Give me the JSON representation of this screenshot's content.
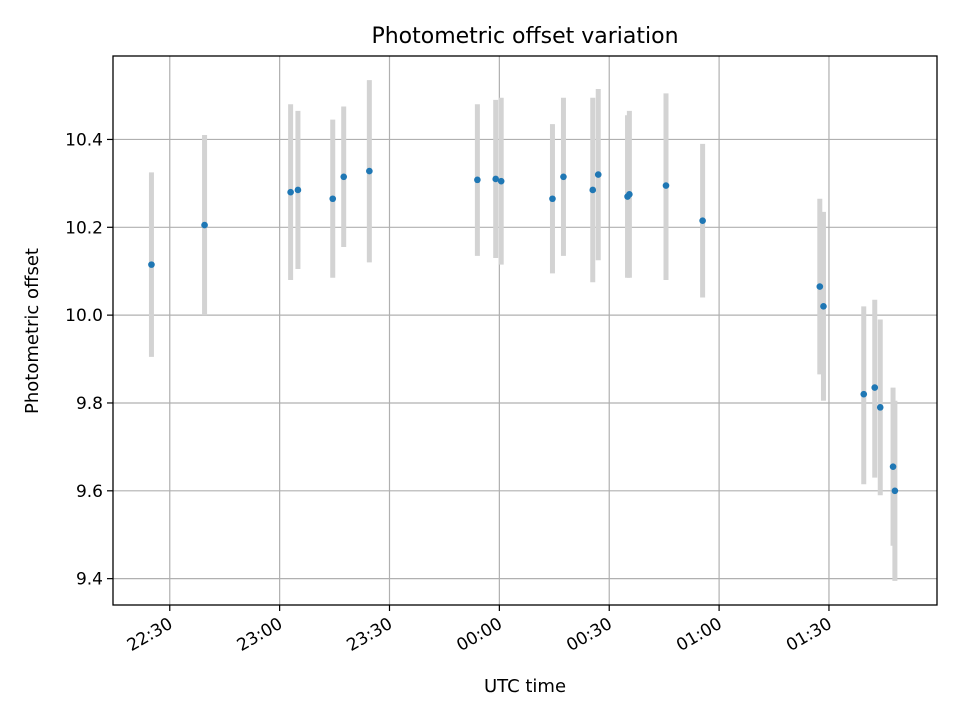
{
  "chart_data": {
    "type": "scatter",
    "title": "Photometric offset variation",
    "xlabel": "UTC time",
    "ylabel": "Photometric offset",
    "grid": true,
    "x_tick_labels": [
      "22:30",
      "23:00",
      "23:30",
      "00:00",
      "00:30",
      "01:00",
      "01:30"
    ],
    "x_ticks": [
      "22:30",
      "23:00",
      "23:30",
      "00:00",
      "00:30",
      "01:00",
      "01:30"
    ],
    "xlim": [
      "22:14:30",
      "01:59:30"
    ],
    "ylim": [
      9.34,
      10.59
    ],
    "y_ticks": [
      9.4,
      9.6,
      9.8,
      10.0,
      10.2,
      10.4
    ],
    "y_tick_labels": [
      "9.4",
      "9.6",
      "9.8",
      "10.0",
      "10.2",
      "10.4"
    ],
    "colors": {
      "point": "#1f77b4",
      "errorbar": "#d3d3d3",
      "grid": "#b0b0b0"
    },
    "points": [
      {
        "x": "22:25:00",
        "y": 10.115,
        "ylow": 9.905,
        "yhigh": 10.325
      },
      {
        "x": "22:39:30",
        "y": 10.205,
        "ylow": 10.0,
        "yhigh": 10.41
      },
      {
        "x": "23:03:00",
        "y": 10.28,
        "ylow": 10.08,
        "yhigh": 10.48
      },
      {
        "x": "23:05:00",
        "y": 10.285,
        "ylow": 10.105,
        "yhigh": 10.465
      },
      {
        "x": "23:14:30",
        "y": 10.265,
        "ylow": 10.085,
        "yhigh": 10.445
      },
      {
        "x": "23:17:30",
        "y": 10.315,
        "ylow": 10.155,
        "yhigh": 10.475
      },
      {
        "x": "23:24:30",
        "y": 10.328,
        "ylow": 10.12,
        "yhigh": 10.535
      },
      {
        "x": "23:54:00",
        "y": 10.308,
        "ylow": 10.135,
        "yhigh": 10.48
      },
      {
        "x": "23:59:00",
        "y": 10.31,
        "ylow": 10.13,
        "yhigh": 10.49
      },
      {
        "x": "00:00:30",
        "y": 10.305,
        "ylow": 10.115,
        "yhigh": 10.495
      },
      {
        "x": "00:14:30",
        "y": 10.265,
        "ylow": 10.095,
        "yhigh": 10.435
      },
      {
        "x": "00:17:30",
        "y": 10.315,
        "ylow": 10.135,
        "yhigh": 10.495
      },
      {
        "x": "00:25:30",
        "y": 10.285,
        "ylow": 10.075,
        "yhigh": 10.495
      },
      {
        "x": "00:27:00",
        "y": 10.32,
        "ylow": 10.125,
        "yhigh": 10.515
      },
      {
        "x": "00:35:00",
        "y": 10.27,
        "ylow": 10.085,
        "yhigh": 10.455
      },
      {
        "x": "00:35:30",
        "y": 10.275,
        "ylow": 10.085,
        "yhigh": 10.465
      },
      {
        "x": "00:45:30",
        "y": 10.295,
        "ylow": 10.08,
        "yhigh": 10.505
      },
      {
        "x": "00:55:30",
        "y": 10.215,
        "ylow": 10.04,
        "yhigh": 10.39
      },
      {
        "x": "01:27:30",
        "y": 10.065,
        "ylow": 9.865,
        "yhigh": 10.265
      },
      {
        "x": "01:28:30",
        "y": 10.02,
        "ylow": 9.805,
        "yhigh": 10.235
      },
      {
        "x": "01:39:30",
        "y": 9.82,
        "ylow": 9.615,
        "yhigh": 10.02
      },
      {
        "x": "01:42:30",
        "y": 9.835,
        "ylow": 9.63,
        "yhigh": 10.035
      },
      {
        "x": "01:44:00",
        "y": 9.79,
        "ylow": 9.59,
        "yhigh": 9.99
      },
      {
        "x": "01:47:30",
        "y": 9.655,
        "ylow": 9.475,
        "yhigh": 9.835
      },
      {
        "x": "01:48:00",
        "y": 9.6,
        "ylow": 9.395,
        "yhigh": 9.805
      }
    ]
  }
}
